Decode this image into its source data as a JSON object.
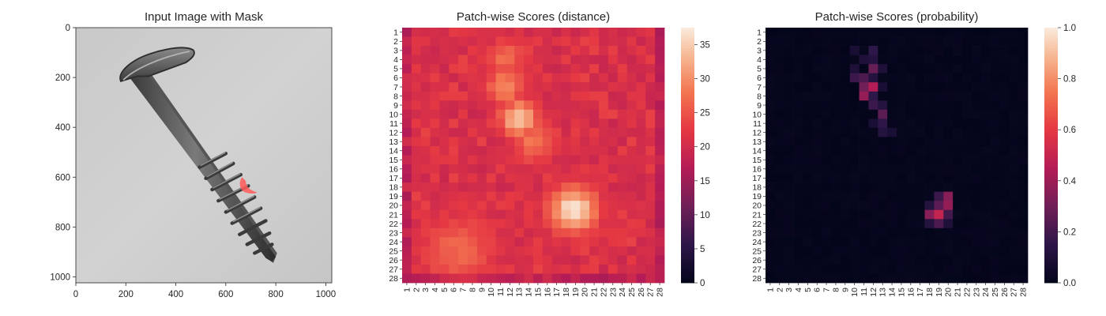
{
  "panel_image": {
    "title": "Input Image with Mask",
    "x_ticks": [
      "0",
      "200",
      "400",
      "600",
      "800",
      "1000"
    ],
    "y_ticks": [
      "0",
      "200",
      "400",
      "600",
      "800",
      "1000"
    ],
    "xlim": [
      0,
      1024
    ],
    "ylim": [
      0,
      1024
    ]
  },
  "panel_distance": {
    "title": "Patch-wise Scores (distance)",
    "colorbar_ticks": [
      "0",
      "5",
      "10",
      "15",
      "20",
      "25",
      "30",
      "35"
    ],
    "colorbar_range": [
      0,
      37.5
    ]
  },
  "panel_probability": {
    "title": "Patch-wise Scores (probability)",
    "colorbar_ticks": [
      "0.0",
      "0.2",
      "0.4",
      "0.6",
      "0.8",
      "1.0"
    ],
    "colorbar_range": [
      0,
      1
    ]
  },
  "chart_data": [
    {
      "type": "image",
      "title": "Input Image with Mask",
      "xlim": [
        0,
        1024
      ],
      "ylim": [
        1024,
        0
      ],
      "x_ticks": [
        0,
        200,
        400,
        600,
        800,
        1000
      ],
      "y_ticks": [
        0,
        200,
        400,
        600,
        800,
        1000
      ],
      "description_marks": {
        "screw_head_center": [
          245,
          200
        ],
        "screw_tip": [
          790,
          930
        ],
        "mask_region_center": [
          675,
          640
        ],
        "mask_color": "#ff5a5a"
      }
    },
    {
      "type": "heatmap",
      "title": "Patch-wise Scores (distance)",
      "grid_size": 28,
      "tick_labels": [
        "1",
        "2",
        "3",
        "4",
        "5",
        "6",
        "7",
        "8",
        "9",
        "10",
        "11",
        "12",
        "13",
        "14",
        "15",
        "16",
        "17",
        "18",
        "19",
        "20",
        "21",
        "22",
        "23",
        "24",
        "25",
        "26",
        "27",
        "28"
      ],
      "vmin": 0,
      "vmax": 37.5,
      "baseline": 20,
      "hotspots": [
        {
          "row": 4,
          "col": 11.5,
          "value": 27,
          "radius": 1.6
        },
        {
          "row": 7,
          "col": 11.5,
          "value": 30,
          "radius": 1.5
        },
        {
          "row": 10.5,
          "col": 13,
          "value": 35,
          "radius": 1.5
        },
        {
          "row": 13,
          "col": 14.5,
          "value": 28,
          "radius": 1.7
        },
        {
          "row": 20.5,
          "col": 18.8,
          "value": 37,
          "radius": 1.9
        },
        {
          "row": 25,
          "col": 6.5,
          "value": 27,
          "radius": 2.8
        }
      ]
    },
    {
      "type": "heatmap",
      "title": "Patch-wise Scores (probability)",
      "grid_size": 28,
      "tick_labels": [
        "1",
        "2",
        "3",
        "4",
        "5",
        "6",
        "7",
        "8",
        "9",
        "10",
        "11",
        "12",
        "13",
        "14",
        "15",
        "16",
        "17",
        "18",
        "19",
        "20",
        "21",
        "22",
        "23",
        "24",
        "25",
        "26",
        "27",
        "28"
      ],
      "vmin": 0,
      "vmax": 1,
      "baseline": 0,
      "cells": [
        {
          "row": 3,
          "col": 10,
          "value": 0.08
        },
        {
          "row": 3,
          "col": 12,
          "value": 0.15
        },
        {
          "row": 4,
          "col": 11,
          "value": 0.1
        },
        {
          "row": 4,
          "col": 12,
          "value": 0.12
        },
        {
          "row": 5,
          "col": 10,
          "value": 0.1
        },
        {
          "row": 5,
          "col": 12,
          "value": 0.28
        },
        {
          "row": 5,
          "col": 13,
          "value": 0.1
        },
        {
          "row": 6,
          "col": 10,
          "value": 0.18
        },
        {
          "row": 6,
          "col": 11,
          "value": 0.22
        },
        {
          "row": 6,
          "col": 12,
          "value": 0.12
        },
        {
          "row": 7,
          "col": 11,
          "value": 0.3
        },
        {
          "row": 7,
          "col": 12,
          "value": 0.45
        },
        {
          "row": 7,
          "col": 13,
          "value": 0.08
        },
        {
          "row": 8,
          "col": 11,
          "value": 0.38
        },
        {
          "row": 8,
          "col": 12,
          "value": 0.15
        },
        {
          "row": 9,
          "col": 12,
          "value": 0.18
        },
        {
          "row": 9,
          "col": 13,
          "value": 0.12
        },
        {
          "row": 10,
          "col": 13,
          "value": 0.25
        },
        {
          "row": 11,
          "col": 12,
          "value": 0.08
        },
        {
          "row": 11,
          "col": 13,
          "value": 0.15
        },
        {
          "row": 12,
          "col": 13,
          "value": 0.12
        },
        {
          "row": 12,
          "col": 14,
          "value": 0.08
        },
        {
          "row": 19,
          "col": 19,
          "value": 0.18
        },
        {
          "row": 19,
          "col": 20,
          "value": 0.35
        },
        {
          "row": 20,
          "col": 18,
          "value": 0.12
        },
        {
          "row": 20,
          "col": 19,
          "value": 0.25
        },
        {
          "row": 20,
          "col": 20,
          "value": 0.38
        },
        {
          "row": 21,
          "col": 18,
          "value": 0.35
        },
        {
          "row": 21,
          "col": 19,
          "value": 0.5
        },
        {
          "row": 21,
          "col": 20,
          "value": 0.2
        },
        {
          "row": 22,
          "col": 18,
          "value": 0.12
        },
        {
          "row": 22,
          "col": 19,
          "value": 0.22
        },
        {
          "row": 22,
          "col": 20,
          "value": 0.1
        }
      ]
    }
  ]
}
